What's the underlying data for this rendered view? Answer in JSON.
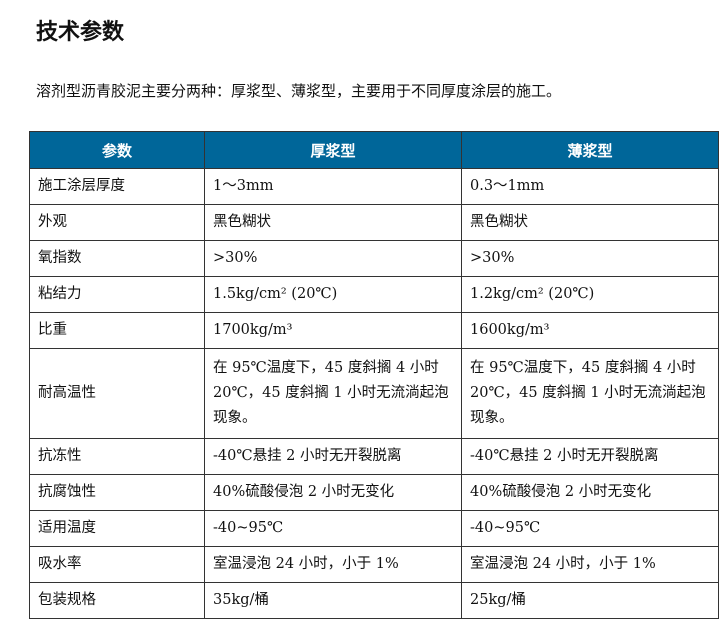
{
  "title": "技术参数",
  "intro": "溶剂型沥青胶泥主要分两种：厚浆型、薄浆型，主要用于不同厚度涂层的施工。",
  "header": {
    "color": "#006699",
    "columns": [
      "参数",
      "厚浆型",
      "薄浆型"
    ]
  },
  "rows": [
    {
      "param": "施工涂层厚度",
      "thick": "1～3mm",
      "thin": "0.3～1mm"
    },
    {
      "param": "外观",
      "thick": "黑色糊状",
      "thin": "黑色糊状"
    },
    {
      "param": "氧指数",
      "thick": ">30%",
      "thin": ">30%"
    },
    {
      "param": "粘结力",
      "thick": "1.5kg/cm² (20℃)",
      "thin": "1.2kg/cm² (20℃)"
    },
    {
      "param": "比重",
      "thick": "1700kg/m³",
      "thin": "1600kg/m³"
    },
    {
      "param": "耐高温性",
      "thick": "在 95℃温度下，45 度斜搁 4 小时 20℃，45 度斜搁 1 小时无流淌起泡现象。",
      "thin": "在 95℃温度下，45 度斜搁 4 小时 20℃，45 度斜搁 1 小时无流淌起泡现象。"
    },
    {
      "param": "抗冻性",
      "thick": "-40℃悬挂 2 小时无开裂脱离",
      "thin": "-40℃悬挂 2 小时无开裂脱离"
    },
    {
      "param": "抗腐蚀性",
      "thick": "40%硫酸侵泡 2 小时无变化",
      "thin": "40%硫酸侵泡 2 小时无变化"
    },
    {
      "param": "适用温度",
      "thick": "-40~95℃",
      "thin": "-40~95℃"
    },
    {
      "param": "吸水率",
      "thick": "室温浸泡 24 小时，小于 1%",
      "thin": "室温浸泡 24 小时，小于 1%"
    },
    {
      "param": "包装规格",
      "thick": "35kg/桶",
      "thin": "25kg/桶"
    }
  ]
}
